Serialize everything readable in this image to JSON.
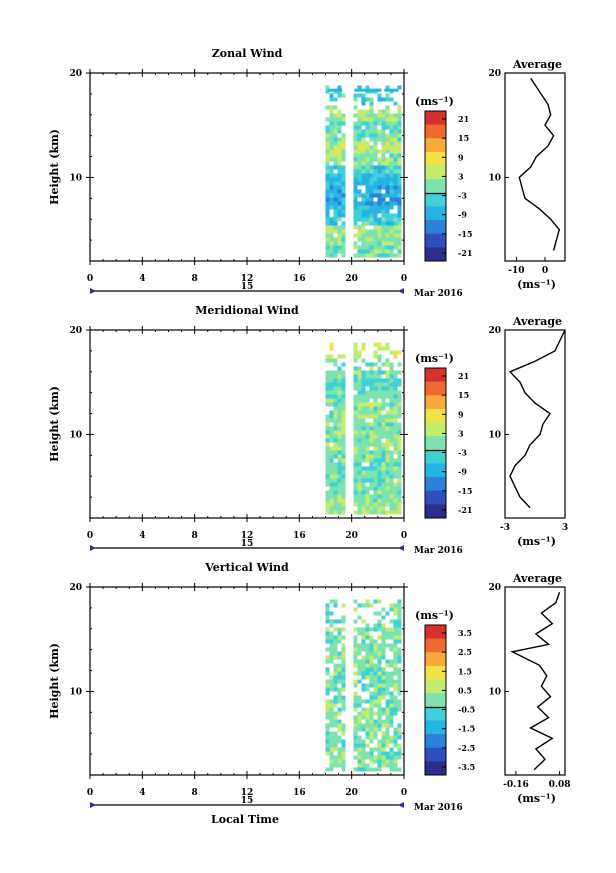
{
  "figure": {
    "panels": [
      {
        "key": "zonal",
        "title": "Zonal Wind",
        "ylabel": "Height (km)",
        "unit_label": "(ms⁻¹)",
        "colorbar_ticks": [
          "21",
          "15",
          "9",
          "3",
          "-3",
          "-9",
          "-15",
          "-21"
        ],
        "avg_title": "Average",
        "avg_unit": "(ms⁻¹)",
        "avg_xticks": [
          "-10",
          "0"
        ],
        "avg_xlim": [
          -14,
          7
        ]
      },
      {
        "key": "meridional",
        "title": "Meridional Wind",
        "ylabel": "Height (km)",
        "unit_label": "(ms⁻¹)",
        "colorbar_ticks": [
          "21",
          "15",
          "9",
          "3",
          "-3",
          "-9",
          "-15",
          "-21"
        ],
        "avg_title": "Average",
        "avg_unit": "(ms⁻¹)",
        "avg_xticks": [
          "-3",
          "3"
        ],
        "avg_xlim": [
          -3,
          3
        ]
      },
      {
        "key": "vertical",
        "title": "Vertical Wind",
        "ylabel": "Height (km)",
        "unit_label": "(ms⁻¹)",
        "colorbar_ticks": [
          "3.5",
          "2.5",
          "1.5",
          "0.5",
          "-0.5",
          "-1.5",
          "-2.5",
          "-3.5"
        ],
        "avg_title": "Average",
        "avg_unit": "(ms⁻¹)",
        "avg_xticks": [
          "-0.16",
          "0.08"
        ],
        "avg_xlim": [
          -0.22,
          0.11
        ]
      }
    ],
    "x_ticks": [
      "0",
      "4",
      "8",
      "12",
      "16",
      "20",
      "0"
    ],
    "day_label": "15",
    "date_label": "Mar 2016",
    "xlabel": "Local Time",
    "y_ticks": [
      "20",
      "10"
    ],
    "colormap": [
      "#2b2f8a",
      "#2f4fc0",
      "#2e7fd8",
      "#27b3e6",
      "#3fd0d8",
      "#7ce3b0",
      "#c2ec6e",
      "#f3e14a",
      "#f6ab38",
      "#ee6a2c",
      "#d7302a"
    ]
  },
  "chart_data": [
    {
      "type": "heatmap",
      "title": "Zonal Wind",
      "xlabel": "Local Time",
      "ylabel": "Height (km)",
      "xlim": [
        0,
        24
      ],
      "ylim": [
        2,
        20
      ],
      "data_window_hours": [
        18.0,
        23.8
      ],
      "colorbar": {
        "label": "(ms⁻¹)",
        "range": [
          -21,
          21
        ]
      },
      "rows": [
        {
          "h": 3,
          "v": -1
        },
        {
          "h": 4,
          "v": 1
        },
        {
          "h": 5,
          "v": 2
        },
        {
          "h": 6,
          "v": -4
        },
        {
          "h": 7,
          "v": -6
        },
        {
          "h": 8,
          "v": -8
        },
        {
          "h": 9,
          "v": -8
        },
        {
          "h": 10,
          "v": -6
        },
        {
          "h": 11,
          "v": -3
        },
        {
          "h": 12,
          "v": 1
        },
        {
          "h": 13,
          "v": 3
        },
        {
          "h": 14,
          "v": 1
        },
        {
          "h": 15,
          "v": -1
        },
        {
          "h": 16,
          "v": 2
        },
        {
          "h": 18.5,
          "v": -4
        }
      ]
    },
    {
      "type": "line",
      "title": "Average",
      "xlabel": "(ms⁻¹)",
      "xlim": [
        -14,
        7
      ],
      "ylim": [
        2,
        20
      ],
      "points": [
        {
          "x": 3,
          "y": 3
        },
        {
          "x": 4,
          "y": 4
        },
        {
          "x": 5,
          "y": 5
        },
        {
          "x": 2,
          "y": 6
        },
        {
          "x": -2,
          "y": 7
        },
        {
          "x": -7,
          "y": 8
        },
        {
          "x": -8,
          "y": 9
        },
        {
          "x": -9,
          "y": 10
        },
        {
          "x": -5,
          "y": 11
        },
        {
          "x": -3,
          "y": 12
        },
        {
          "x": 1,
          "y": 13
        },
        {
          "x": 3,
          "y": 14
        },
        {
          "x": 0,
          "y": 15
        },
        {
          "x": 2,
          "y": 16
        },
        {
          "x": 1,
          "y": 17
        },
        {
          "x": -5,
          "y": 19.5
        }
      ]
    },
    {
      "type": "heatmap",
      "title": "Meridional Wind",
      "xlabel": "Local Time",
      "ylabel": "Height (km)",
      "xlim": [
        0,
        24
      ],
      "ylim": [
        2,
        20
      ],
      "data_window_hours": [
        18.0,
        23.8
      ],
      "colorbar": {
        "label": "(ms⁻¹)",
        "range": [
          -21,
          21
        ]
      },
      "rows": [
        {
          "h": 3,
          "v": 2
        },
        {
          "h": 4,
          "v": 1
        },
        {
          "h": 5,
          "v": 0
        },
        {
          "h": 6,
          "v": -1
        },
        {
          "h": 7,
          "v": -1
        },
        {
          "h": 8,
          "v": 0
        },
        {
          "h": 9,
          "v": 1
        },
        {
          "h": 10,
          "v": 1
        },
        {
          "h": 11,
          "v": 0
        },
        {
          "h": 12,
          "v": 1
        },
        {
          "h": 13,
          "v": 0
        },
        {
          "h": 14,
          "v": -1
        },
        {
          "h": 15,
          "v": -2
        },
        {
          "h": 16,
          "v": 0
        },
        {
          "h": 19,
          "v": 5
        }
      ]
    },
    {
      "type": "line",
      "title": "Average",
      "xlabel": "(ms⁻¹)",
      "xlim": [
        -3,
        3
      ],
      "ylim": [
        2,
        20
      ],
      "points": [
        {
          "x": -0.5,
          "y": 3
        },
        {
          "x": -1.5,
          "y": 4
        },
        {
          "x": -2,
          "y": 5
        },
        {
          "x": -2.5,
          "y": 6
        },
        {
          "x": -2,
          "y": 7
        },
        {
          "x": -1,
          "y": 8
        },
        {
          "x": -0.5,
          "y": 9
        },
        {
          "x": 0.5,
          "y": 10
        },
        {
          "x": 0.8,
          "y": 11
        },
        {
          "x": 1.5,
          "y": 12
        },
        {
          "x": 0,
          "y": 13
        },
        {
          "x": -1,
          "y": 14
        },
        {
          "x": -1.5,
          "y": 15
        },
        {
          "x": -2.5,
          "y": 16
        },
        {
          "x": 0,
          "y": 17
        },
        {
          "x": 2,
          "y": 18
        },
        {
          "x": 3,
          "y": 20
        }
      ]
    },
    {
      "type": "heatmap",
      "title": "Vertical Wind",
      "xlabel": "Local Time",
      "ylabel": "Height (km)",
      "xlim": [
        0,
        24
      ],
      "ylim": [
        2,
        20
      ],
      "data_window_hours": [
        18.0,
        23.8
      ],
      "colorbar": {
        "label": "(ms⁻¹)",
        "range": [
          -3.5,
          3.5
        ]
      },
      "rows": [
        {
          "h": 3,
          "v": 0
        },
        {
          "h": 6,
          "v": 0
        },
        {
          "h": 9,
          "v": 0
        },
        {
          "h": 12,
          "v": 0
        },
        {
          "h": 15,
          "v": 0
        },
        {
          "h": 18,
          "v": 0
        },
        {
          "h": 19.5,
          "v": 0
        }
      ]
    },
    {
      "type": "line",
      "title": "Average",
      "xlabel": "(ms⁻¹)",
      "xlim": [
        -0.22,
        0.11
      ],
      "ylim": [
        2,
        20
      ],
      "points": [
        {
          "x": -0.06,
          "y": 2.5
        },
        {
          "x": 0.0,
          "y": 3.5
        },
        {
          "x": -0.05,
          "y": 4.5
        },
        {
          "x": 0.04,
          "y": 5.5
        },
        {
          "x": -0.08,
          "y": 6.5
        },
        {
          "x": 0.02,
          "y": 7.5
        },
        {
          "x": -0.04,
          "y": 8.5
        },
        {
          "x": 0.03,
          "y": 9.5
        },
        {
          "x": -0.02,
          "y": 10.5
        },
        {
          "x": 0.01,
          "y": 11.5
        },
        {
          "x": -0.03,
          "y": 12.5
        },
        {
          "x": -0.18,
          "y": 13.8
        },
        {
          "x": 0.02,
          "y": 14.5
        },
        {
          "x": -0.05,
          "y": 15.5
        },
        {
          "x": 0.04,
          "y": 16.5
        },
        {
          "x": -0.02,
          "y": 17.5
        },
        {
          "x": 0.06,
          "y": 18.5
        },
        {
          "x": 0.08,
          "y": 19.5
        }
      ]
    }
  ]
}
